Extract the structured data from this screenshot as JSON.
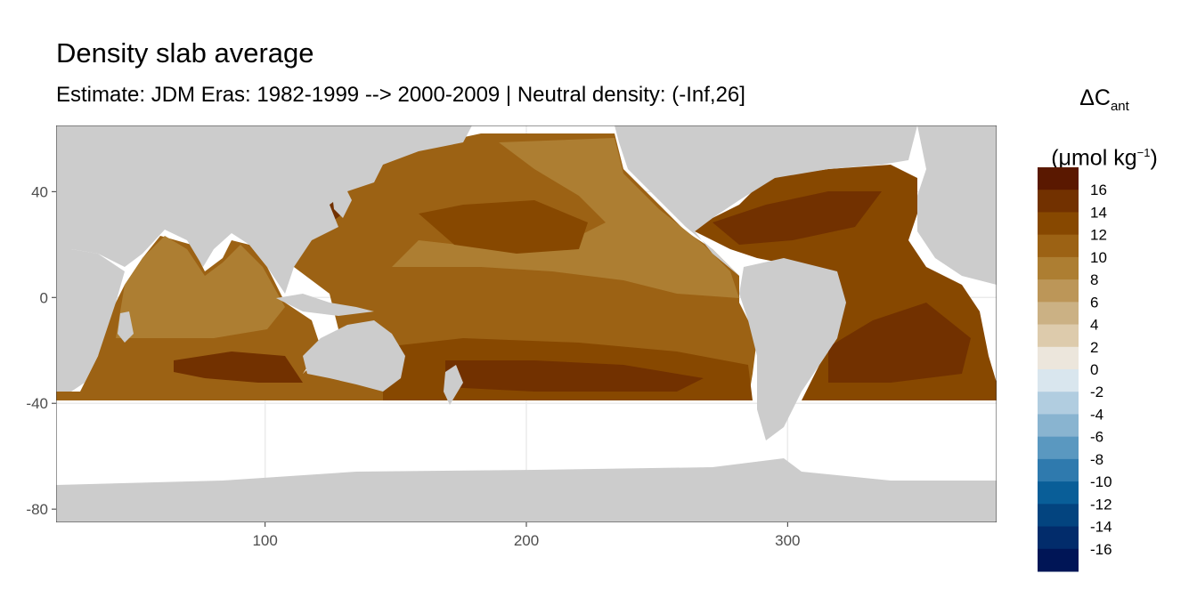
{
  "title": "Density slab average",
  "subtitle": "Estimate: JDM Eras: 1982-1999 --> 2000-2009 | Neutral density: (-Inf,26]",
  "legend": {
    "title_main": "ΔC",
    "title_sub": "ant",
    "unit_pre": "(μmol kg",
    "unit_sup": "−1",
    "unit_post": ")",
    "bins": [
      {
        "label": "16",
        "color": "#5a1800"
      },
      {
        "label": "14",
        "color": "#723100"
      },
      {
        "label": "12",
        "color": "#874800"
      },
      {
        "label": "10",
        "color": "#9c6214"
      },
      {
        "label": "8",
        "color": "#ad7e32"
      },
      {
        "label": "6",
        "color": "#bc9658"
      },
      {
        "label": "4",
        "color": "#cbb184"
      },
      {
        "label": "2",
        "color": "#ddcbac"
      },
      {
        "label": "0",
        "color": "#ece6dc"
      },
      {
        "label": "-2",
        "color": "#d9e6ee"
      },
      {
        "label": "-4",
        "color": "#b1cde0"
      },
      {
        "label": "-6",
        "color": "#89b4d0"
      },
      {
        "label": "-8",
        "color": "#5a98c0"
      },
      {
        "label": "-10",
        "color": "#2f7aae"
      },
      {
        "label": "-12",
        "color": "#095e98"
      },
      {
        "label": "-14",
        "color": "#03447f"
      },
      {
        "label": "-16",
        "color": "#022c6b"
      },
      {
        "label": "",
        "color": "#001556"
      }
    ]
  },
  "axes": {
    "x_ticks": [
      100,
      200,
      300
    ],
    "y_ticks": [
      40,
      0,
      -40,
      -80
    ],
    "x_range": [
      20,
      380
    ],
    "y_range": [
      -85,
      65
    ]
  },
  "colors": {
    "land": "#cccccc",
    "grid": "#ebebeb",
    "no_data": "#ffffff"
  }
}
